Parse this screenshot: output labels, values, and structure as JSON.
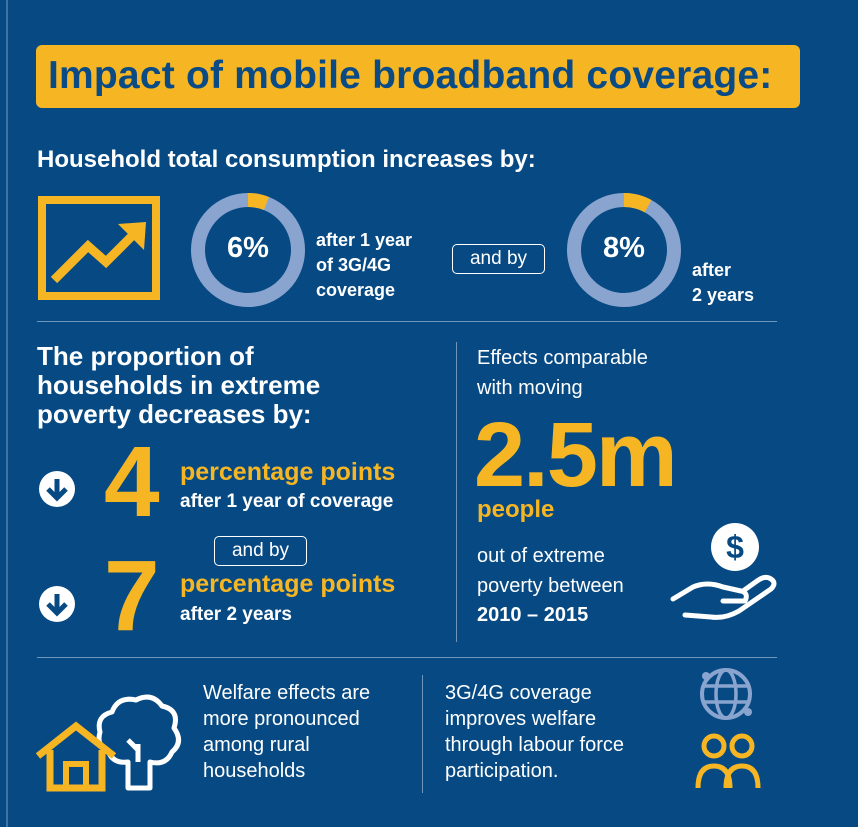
{
  "title": "Impact of mobile broadband coverage:",
  "consumption": {
    "heading": "Household total consumption increases by:",
    "ring1": {
      "value": "6%",
      "fraction": 0.06,
      "caption": [
        "after 1 year",
        "of 3G/4G",
        "coverage"
      ]
    },
    "connector": "and by",
    "ring2": {
      "value": "8%",
      "fraction": 0.08,
      "caption": [
        "after",
        "2 years"
      ]
    }
  },
  "poverty": {
    "heading": [
      "The proportion of",
      "households in extreme",
      "poverty decreases by:"
    ],
    "item1": {
      "number": "4",
      "line1": "percentage points",
      "line2": "after 1 year of coverage"
    },
    "connector": "and by",
    "item2": {
      "number": "7",
      "line1": "percentage points",
      "line2": "after 2 years"
    }
  },
  "effects": {
    "intro": [
      "Effects comparable",
      "with moving"
    ],
    "big_number": "2.5m",
    "people": "people",
    "outro": [
      "out of extreme",
      "poverty between"
    ],
    "years": "2010 – 2015"
  },
  "footer": {
    "rural": [
      "Welfare effects are",
      "more pronounced",
      "among rural",
      "households"
    ],
    "labour": [
      "3G/4G coverage",
      "improves welfare",
      "through labour force",
      "participation."
    ]
  },
  "colors": {
    "background": "#074a83",
    "accent": "#f6b624",
    "ring_track": "#8aa4d0",
    "text": "#ffffff"
  },
  "icons": [
    "trend-chart-icon",
    "arrow-down-circle-icon",
    "hand-coin-icon",
    "house-icon",
    "tree-icon",
    "globe-icon",
    "people-icon"
  ]
}
